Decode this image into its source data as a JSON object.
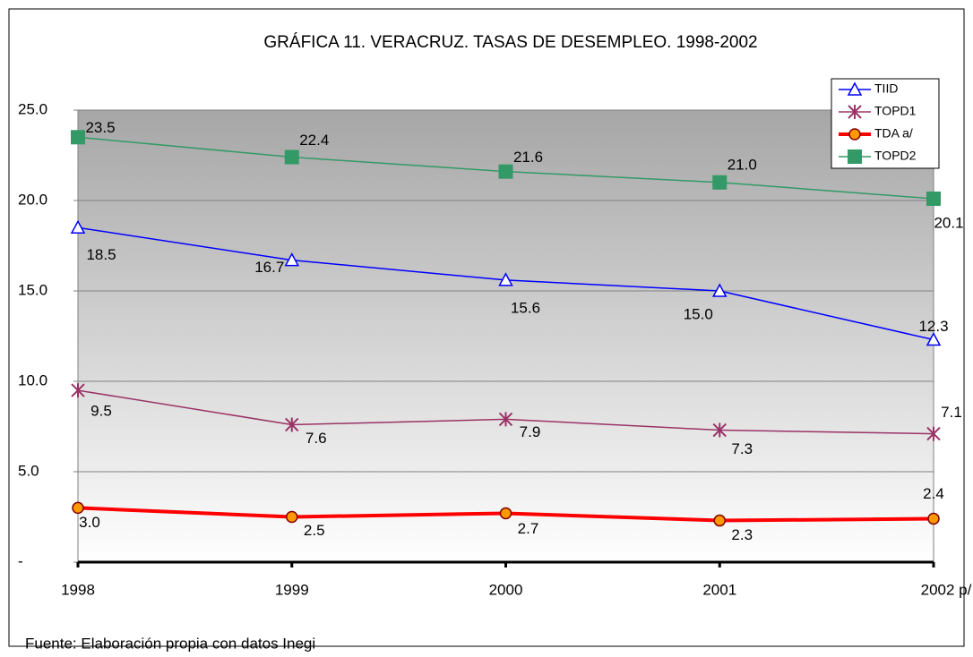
{
  "chart_data": {
    "type": "line",
    "title": "GRÁFICA 11. VERACRUZ. TASAS DE DESEMPLEO. 1998-2002",
    "categories": [
      "1998",
      "1999",
      "2000",
      "2001",
      "2002 p/"
    ],
    "series": [
      {
        "name": "TIID",
        "color": "#0000ff",
        "marker": "triangle",
        "values": [
          18.5,
          16.7,
          15.6,
          15.0,
          12.3
        ],
        "value_labels": [
          "18.5",
          "16.7",
          "15.6",
          "15.0",
          "12.3"
        ]
      },
      {
        "name": "TOPD1",
        "color": "#993366",
        "marker": "star",
        "values": [
          9.5,
          7.6,
          7.9,
          7.3,
          7.1
        ],
        "value_labels": [
          "9.5",
          "7.6",
          "7.9",
          "7.3",
          "7.1"
        ]
      },
      {
        "name": "TDA a/",
        "color": "#ff0000",
        "marker": "circle",
        "values": [
          3.0,
          2.5,
          2.7,
          2.3,
          2.4
        ],
        "value_labels": [
          "3.0",
          "2.5",
          "2.7",
          "2.3",
          "2.4"
        ]
      },
      {
        "name": "TOPD2",
        "color": "#339966",
        "marker": "square",
        "values": [
          23.5,
          22.4,
          21.6,
          21.0,
          20.1
        ],
        "value_labels": [
          "23.5",
          "22.4",
          "21.6",
          "21.0",
          "20.1"
        ]
      }
    ],
    "ylim": [
      0,
      25
    ],
    "yticks": [
      {
        "value": 0,
        "label": "-"
      },
      {
        "value": 5,
        "label": "5.0"
      },
      {
        "value": 10,
        "label": "10.0"
      },
      {
        "value": 15,
        "label": "15.0"
      },
      {
        "value": 20,
        "label": "20.0"
      },
      {
        "value": 25,
        "label": "25.0"
      }
    ],
    "grid": true,
    "legend": "top-right",
    "note": "Fuente: Elaboración propia con datos  Inegi"
  }
}
